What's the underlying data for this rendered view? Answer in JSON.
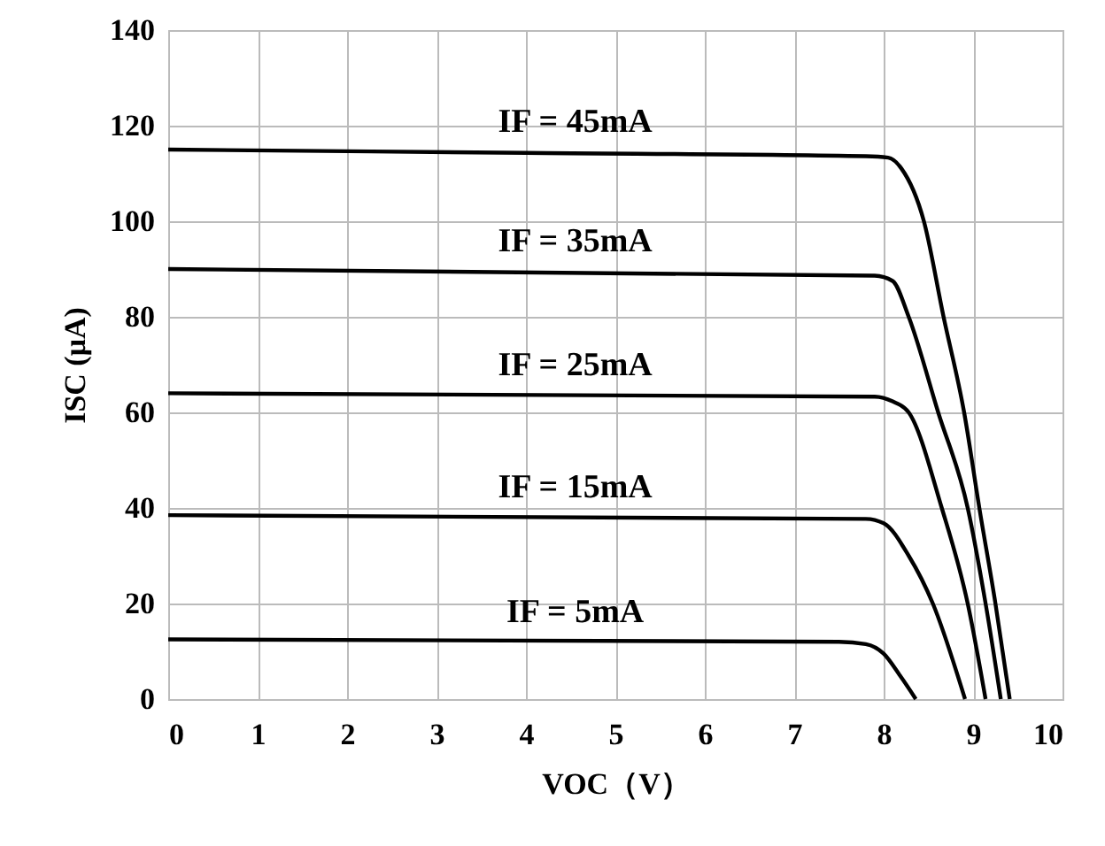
{
  "chart_data": {
    "type": "line",
    "xlabel": "VOC（V）",
    "ylabel": "ISC (μA)",
    "xlim": [
      0,
      10
    ],
    "xticks": [
      0,
      1,
      2,
      3,
      4,
      5,
      6,
      7,
      8,
      9,
      10
    ],
    "ylim": [
      0,
      140
    ],
    "yticks": [
      0,
      20,
      40,
      60,
      80,
      100,
      120,
      140
    ],
    "grid": true,
    "marker": "none",
    "line_style": "solid",
    "series": [
      {
        "name": "IF = 45mA",
        "color": "#000000",
        "x": [
          0,
          4,
          7.8,
          8.05,
          8.2,
          8.45,
          8.67,
          8.9,
          9.07,
          9.25,
          9.41
        ],
        "values": [
          115,
          114.3,
          113.6,
          113.3,
          111,
          100,
          80,
          60,
          40,
          20,
          0
        ]
      },
      {
        "name": "IF = 35mA",
        "color": "#000000",
        "x": [
          0,
          7.9,
          8.1,
          8.28,
          8.61,
          8.94,
          9.14,
          9.31
        ],
        "values": [
          90,
          88.6,
          87.5,
          80,
          60,
          40,
          20,
          0
        ]
      },
      {
        "name": "IF = 25mA",
        "color": "#000000",
        "x": [
          0,
          7.9,
          8.1,
          8.28,
          8.65,
          8.94,
          9.14
        ],
        "values": [
          64,
          63.3,
          62.3,
          60,
          40,
          20,
          0
        ]
      },
      {
        "name": "IF = 15mA",
        "color": "#000000",
        "x": [
          0,
          7.8,
          8.0,
          8.28,
          8.55,
          8.91
        ],
        "values": [
          38.5,
          37.7,
          36.8,
          30,
          20,
          0
        ]
      },
      {
        "name": "IF = 5mA",
        "color": "#000000",
        "x": [
          0,
          7.5,
          7.8,
          8.0,
          8.18,
          8.36
        ],
        "values": [
          12.5,
          12,
          11.5,
          9.5,
          5,
          0
        ]
      }
    ]
  }
}
